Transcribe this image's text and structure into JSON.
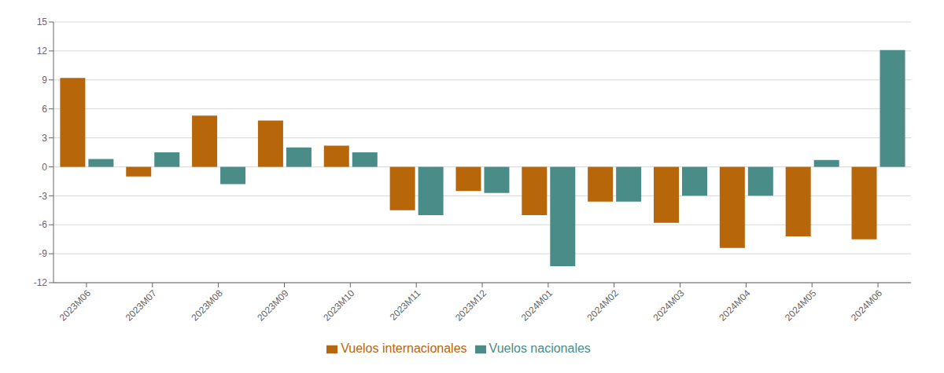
{
  "chart_data": {
    "type": "bar",
    "categories": [
      "2023M06",
      "2023M07",
      "2023M08",
      "2023M09",
      "2023M10",
      "2023M11",
      "2023M12",
      "2024M01",
      "2024M02",
      "2024M03",
      "2024M04",
      "2024M05",
      "2024M06"
    ],
    "series": [
      {
        "name": "Vuelos internacionales",
        "color": "#B8660A",
        "values": [
          9.2,
          -1.0,
          5.3,
          4.8,
          2.2,
          -4.5,
          -2.5,
          -5.0,
          -3.6,
          -5.8,
          -8.4,
          -7.2,
          -7.5
        ]
      },
      {
        "name": "Vuelos nacionales",
        "color": "#4A8C87",
        "values": [
          0.8,
          1.5,
          -1.8,
          2.0,
          1.5,
          -5.0,
          -2.7,
          -10.3,
          -3.6,
          -3.0,
          -3.0,
          0.7,
          12.1
        ]
      }
    ],
    "ylim": [
      -12,
      15
    ],
    "yticks": [
      -12,
      -9,
      -6,
      -3,
      0,
      3,
      6,
      9,
      12,
      15
    ],
    "grid": true,
    "legend": "bottom"
  }
}
